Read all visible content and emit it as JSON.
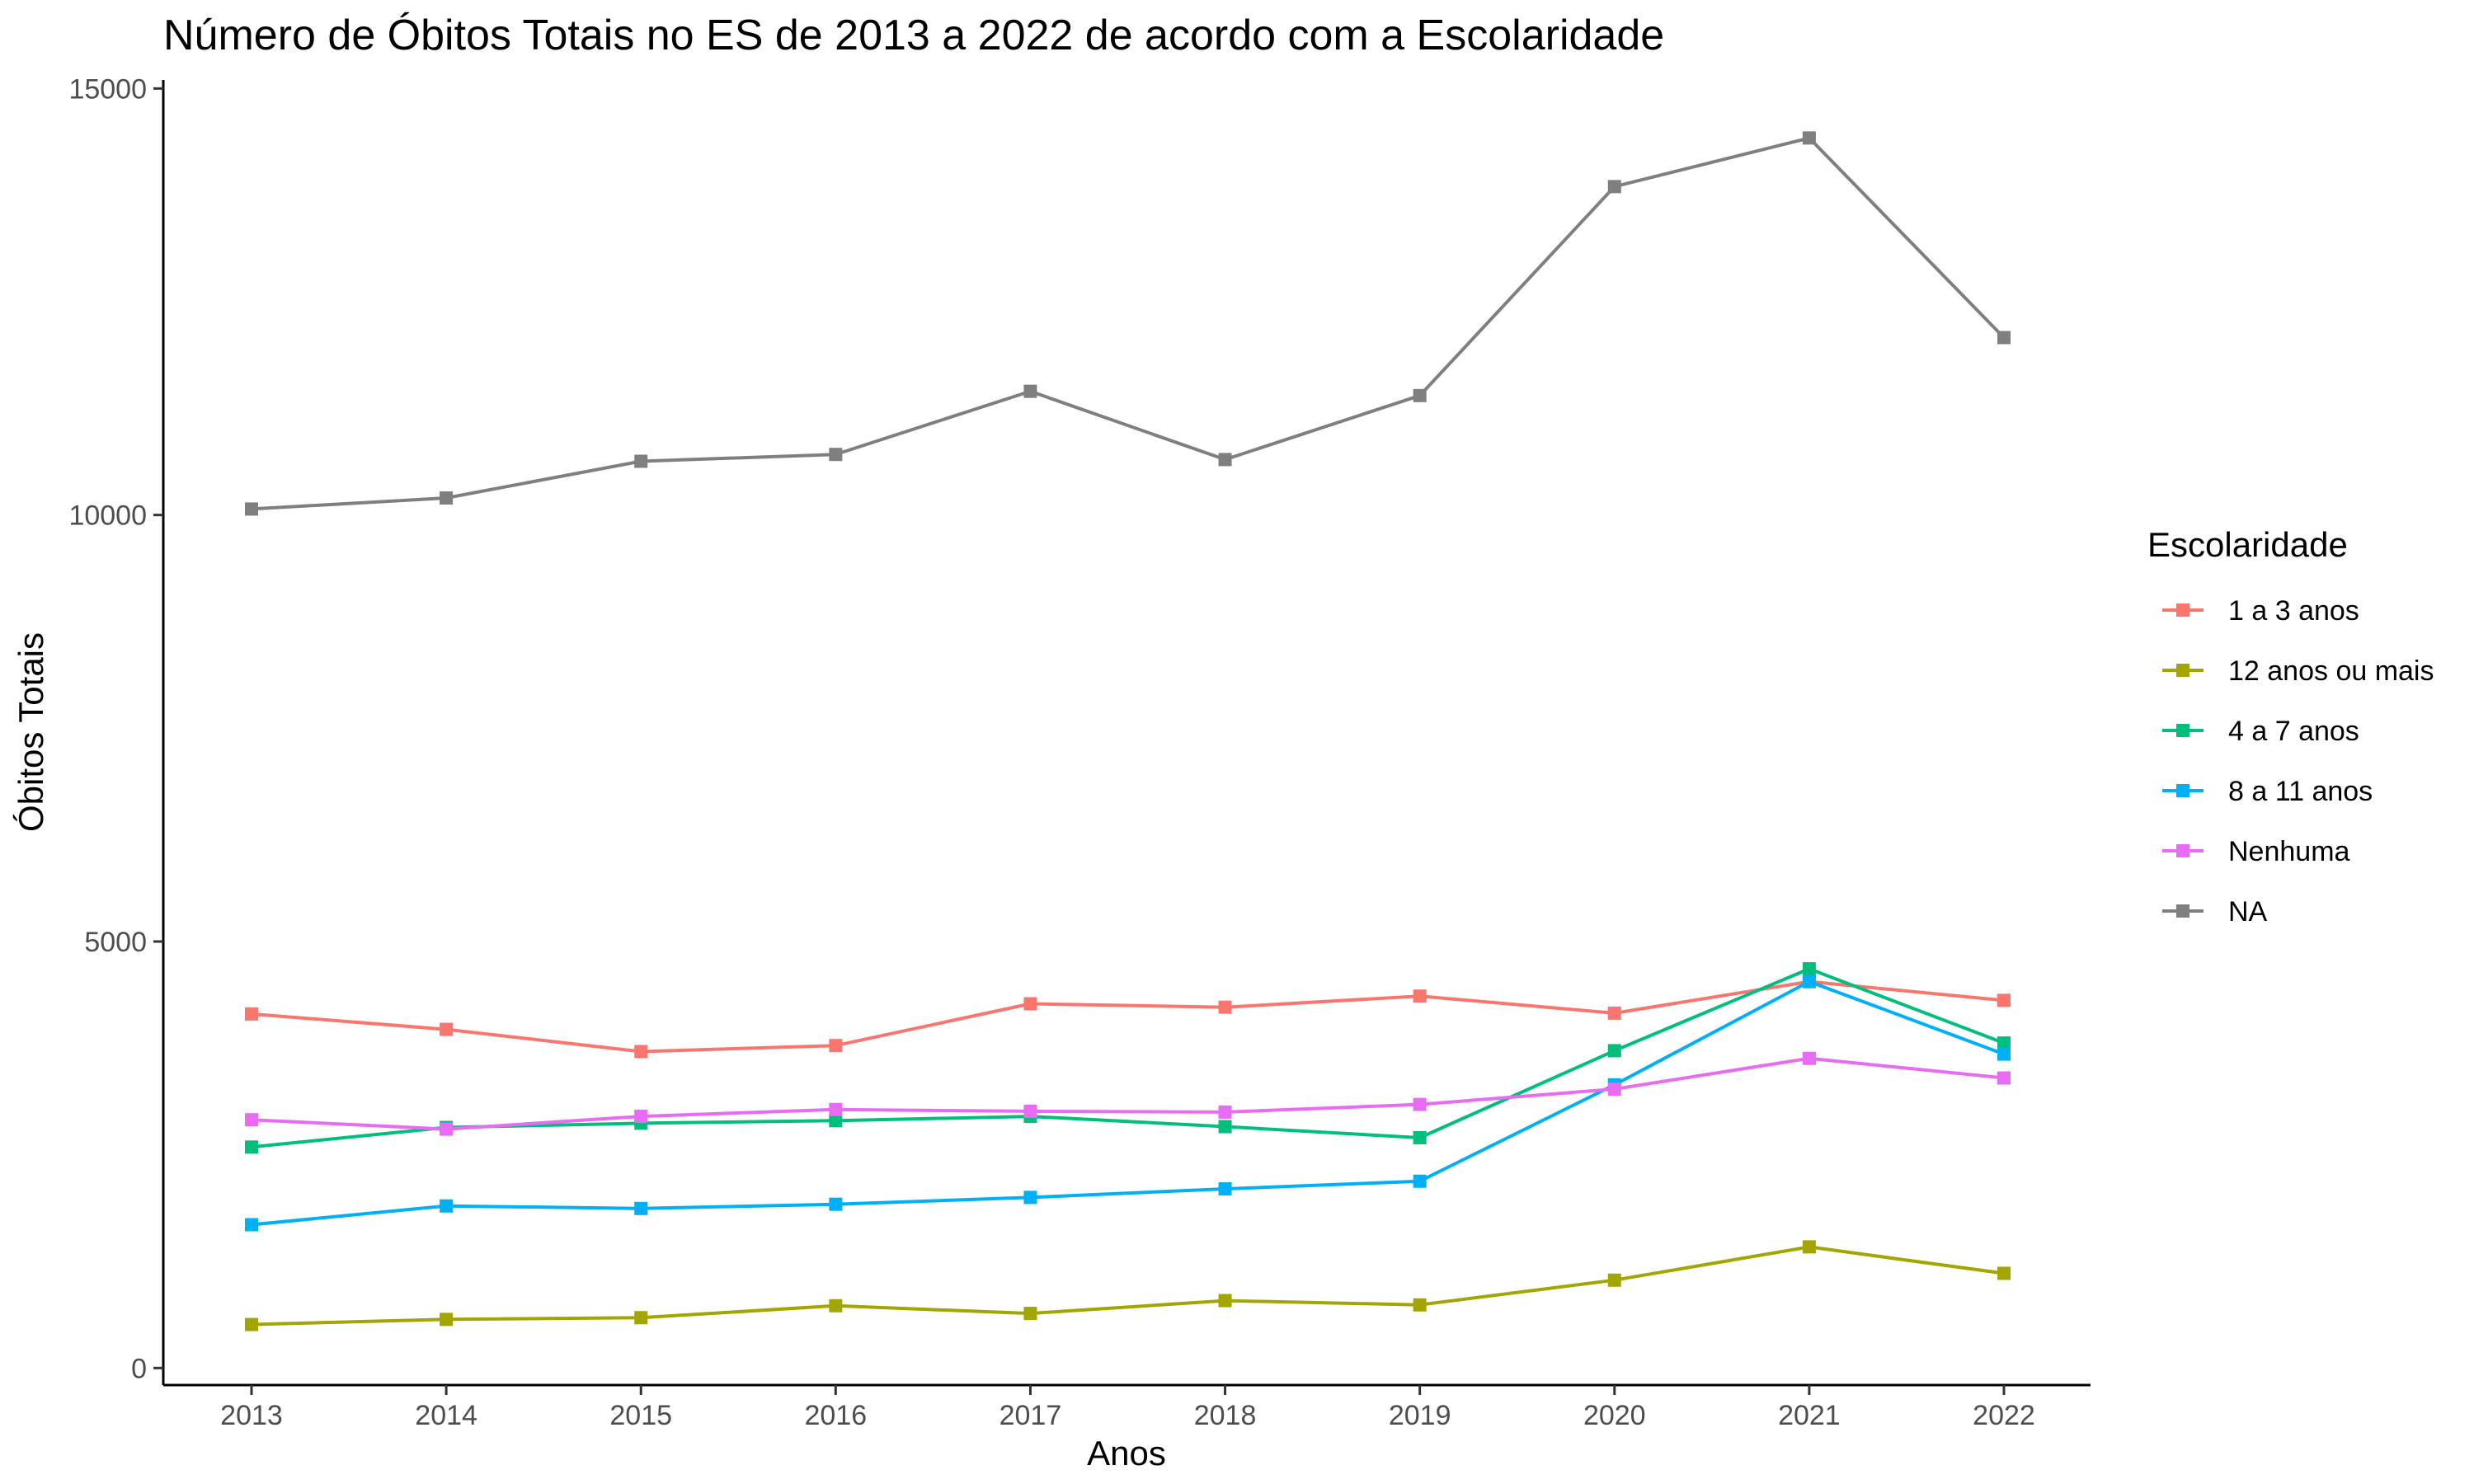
{
  "chart_data": {
    "type": "line",
    "title": "Número de Óbitos Totais no ES de 2013 a 2022 de acordo com a Escolaridade",
    "xlabel": "Anos",
    "ylabel": "Óbitos Totais",
    "x": [
      2013,
      2014,
      2015,
      2016,
      2017,
      2018,
      2019,
      2020,
      2021,
      2022
    ],
    "x_tick_labels": [
      "2013",
      "2014",
      "2015",
      "2016",
      "2017",
      "2018",
      "2019",
      "2020",
      "2021",
      "2022"
    ],
    "y_ticks": [
      0,
      5000,
      10000,
      15000
    ],
    "y_tick_labels": [
      "0",
      "5000",
      "10000",
      "15000"
    ],
    "ylim": [
      -200,
      15100
    ],
    "grid": false,
    "legend": {
      "title": "Escolaridade",
      "placement": "right"
    },
    "series": [
      {
        "name": "1 a 3 anos",
        "color": "#F8766D",
        "values": [
          4150,
          3970,
          3710,
          3780,
          4270,
          4230,
          4360,
          4160,
          4530,
          4310
        ]
      },
      {
        "name": "12 anos ou mais",
        "color": "#A3A500",
        "values": [
          510,
          570,
          590,
          730,
          640,
          790,
          740,
          1030,
          1420,
          1110
        ]
      },
      {
        "name": "4 a 7 anos",
        "color": "#00BF7D",
        "values": [
          2590,
          2820,
          2870,
          2900,
          2950,
          2830,
          2700,
          3720,
          4680,
          3810
        ]
      },
      {
        "name": "8 a 11 anos",
        "color": "#00B0F6",
        "values": [
          1680,
          1900,
          1870,
          1920,
          2000,
          2100,
          2190,
          3320,
          4530,
          3680
        ]
      },
      {
        "name": "Nenhuma",
        "color": "#E76BF3",
        "values": [
          2910,
          2800,
          2950,
          3030,
          3010,
          3000,
          3090,
          3270,
          3630,
          3400
        ]
      },
      {
        "name": "NA",
        "color": "#7F7F7F",
        "values": [
          10070,
          10200,
          10630,
          10710,
          11450,
          10650,
          11400,
          13850,
          14420,
          12080
        ]
      }
    ]
  }
}
